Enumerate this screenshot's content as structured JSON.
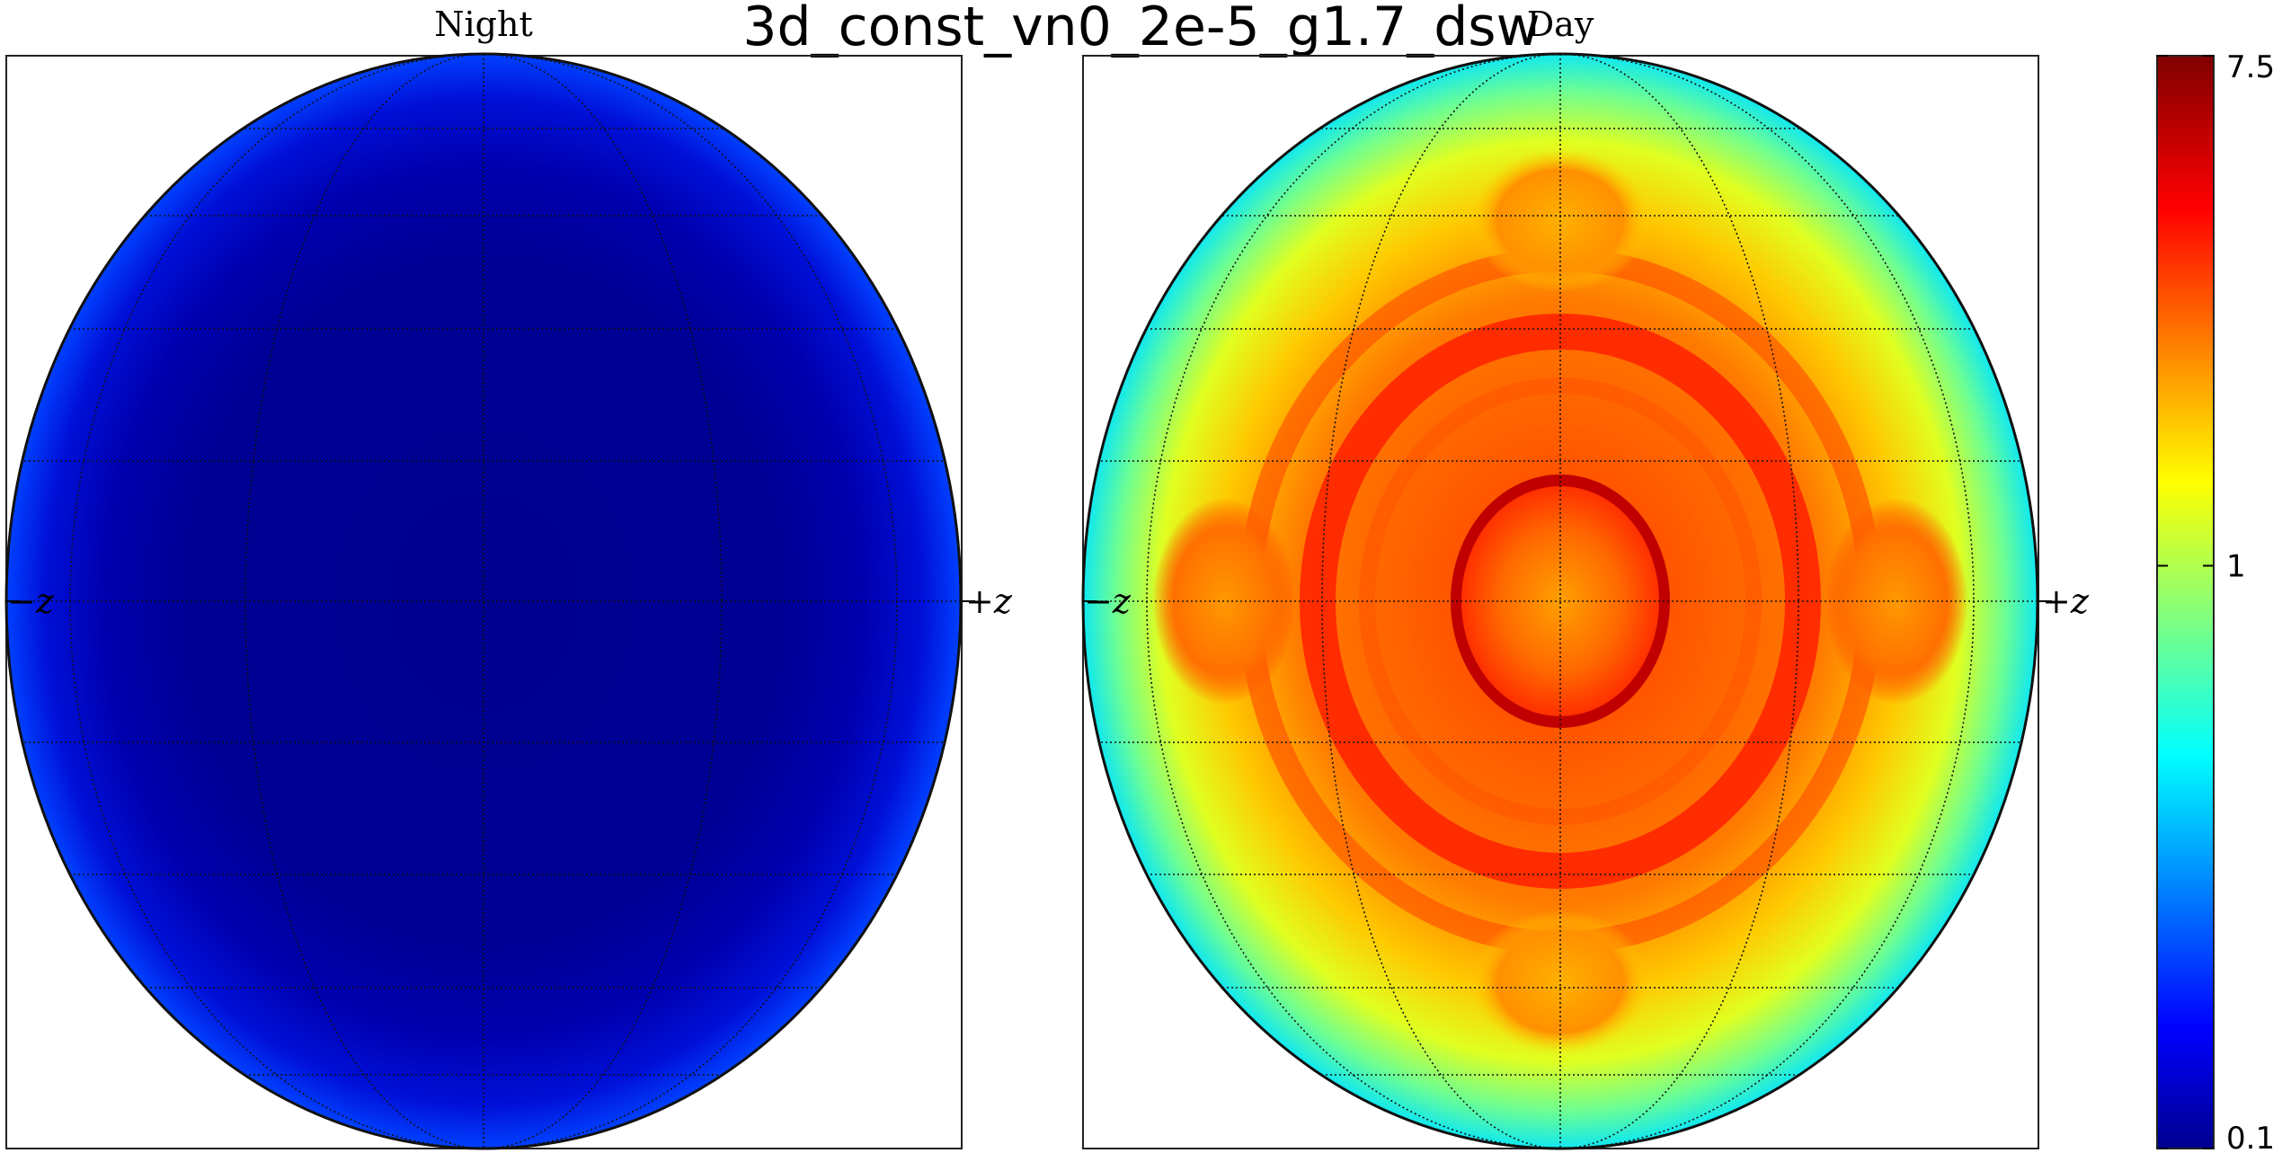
{
  "chart_data": {
    "type": "heatmap",
    "title": "3d_const_vn0_2e-5_g1.7_dsw",
    "projection": "hemisphere map with latitude/longitude graticule",
    "panels": [
      {
        "title": "Night",
        "left_label": "−z",
        "right_label": "+z",
        "field": {
          "center_value": 0.12,
          "limb_value": 0.22,
          "description_values": "nearly uniform dark blue, slightly brighter toward the limb"
        }
      },
      {
        "title": "Day",
        "left_label": "−z",
        "right_label": "+z",
        "field": {
          "center_value": 4.0,
          "center_ring_value": 7.0,
          "ring_values": [
            6.0,
            4.0,
            3.0
          ],
          "side_lobe_value": 3.5,
          "polar_lobe_value": 2.5,
          "limb_value": 0.6
        }
      }
    ],
    "colorbar": {
      "scale": "log",
      "min": 0.1,
      "max": 7.5,
      "ticks": [
        0.1,
        1,
        7.5
      ],
      "tick_labels": [
        "0.1",
        "1",
        "7.5"
      ],
      "colormap": "jet"
    },
    "grid": true
  }
}
